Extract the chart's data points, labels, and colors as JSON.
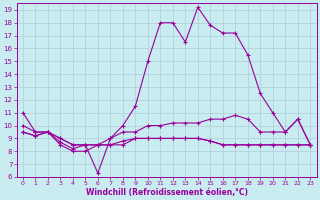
{
  "xlabel": "Windchill (Refroidissement éolien,°C)",
  "bg_color": "#c8ecf0",
  "grid_color": "#b0ccd8",
  "line_color": "#990099",
  "xlim": [
    -0.5,
    23.5
  ],
  "ylim": [
    6,
    19.5
  ],
  "xticks": [
    0,
    1,
    2,
    3,
    4,
    5,
    6,
    7,
    8,
    9,
    10,
    11,
    12,
    13,
    14,
    15,
    16,
    17,
    18,
    19,
    20,
    21,
    22,
    23
  ],
  "yticks": [
    6,
    7,
    8,
    9,
    10,
    11,
    12,
    13,
    14,
    15,
    16,
    17,
    18,
    19
  ],
  "line1_x": [
    0,
    1,
    2,
    3,
    4,
    5,
    6,
    7,
    8,
    9,
    10,
    11,
    12,
    13,
    14,
    15,
    16,
    17,
    18,
    19,
    20,
    21,
    22,
    23
  ],
  "line1_y": [
    11,
    9.5,
    9.5,
    9.0,
    8.5,
    8.5,
    6.3,
    9.0,
    10.0,
    11.5,
    15.0,
    18.0,
    18.0,
    16.5,
    19.2,
    17.8,
    17.2,
    17.2,
    15.5,
    12.5,
    11.0,
    9.5,
    10.5,
    8.5
  ],
  "line2_x": [
    0,
    1,
    2,
    3,
    4,
    5,
    6,
    7,
    8,
    9,
    10,
    11,
    12,
    13,
    14,
    15,
    16,
    17,
    18,
    19,
    20,
    21,
    22,
    23
  ],
  "line2_y": [
    10.0,
    9.5,
    9.5,
    9.0,
    8.5,
    8.5,
    8.5,
    9.0,
    9.5,
    9.5,
    10.0,
    10.0,
    10.2,
    10.2,
    10.2,
    10.5,
    10.5,
    10.8,
    10.5,
    9.5,
    9.5,
    9.5,
    10.5,
    8.5
  ],
  "line3_x": [
    0,
    1,
    2,
    3,
    4,
    5,
    6,
    7,
    8,
    9,
    10,
    11,
    12,
    13,
    14,
    15,
    16,
    17,
    18,
    19,
    20,
    21,
    22,
    23
  ],
  "line3_y": [
    9.5,
    9.2,
    9.5,
    8.7,
    8.2,
    8.5,
    8.5,
    8.5,
    8.8,
    9.0,
    9.0,
    9.0,
    9.0,
    9.0,
    9.0,
    8.8,
    8.5,
    8.5,
    8.5,
    8.5,
    8.5,
    8.5,
    8.5,
    8.5
  ],
  "line4_x": [
    0,
    1,
    2,
    3,
    4,
    5,
    6,
    7,
    8,
    9,
    10,
    11,
    12,
    13,
    14,
    15,
    16,
    17,
    18,
    19,
    20,
    21,
    22,
    23
  ],
  "line4_y": [
    9.5,
    9.2,
    9.5,
    8.5,
    8.0,
    8.0,
    8.5,
    8.5,
    8.5,
    9.0,
    9.0,
    9.0,
    9.0,
    9.0,
    9.0,
    8.8,
    8.5,
    8.5,
    8.5,
    8.5,
    8.5,
    8.5,
    8.5,
    8.5
  ]
}
